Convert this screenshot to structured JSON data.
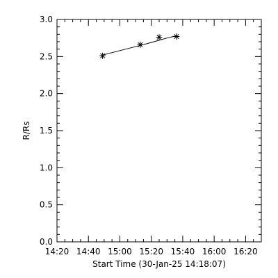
{
  "chart_data": {
    "type": "scatter",
    "title": "",
    "xlabel": "Start Time (30-Jan-25 14:18:07)",
    "ylabel": "R/Rs",
    "x_tick_labels": [
      "14:20",
      "14:40",
      "15:00",
      "15:20",
      "15:40",
      "16:00",
      "16:20"
    ],
    "x_tick_minutes": [
      20,
      40,
      60,
      80,
      100,
      120,
      140
    ],
    "y_tick_labels": [
      "0.0",
      "0.5",
      "1.0",
      "1.5",
      "2.0",
      "2.5",
      "3.0"
    ],
    "xlim_minutes": [
      20,
      150
    ],
    "ylim": [
      0,
      3
    ],
    "x_minutes_after_14h": [
      49,
      73,
      85,
      96
    ],
    "y": [
      2.51,
      2.66,
      2.76,
      2.77
    ],
    "fit_line": {
      "x_minutes_after_14h": [
        49,
        60,
        73,
        80,
        85,
        90,
        96
      ],
      "y": [
        2.52,
        2.58,
        2.65,
        2.69,
        2.72,
        2.75,
        2.78
      ]
    },
    "grid": false,
    "marker": "asterisk",
    "color": "#000000"
  }
}
